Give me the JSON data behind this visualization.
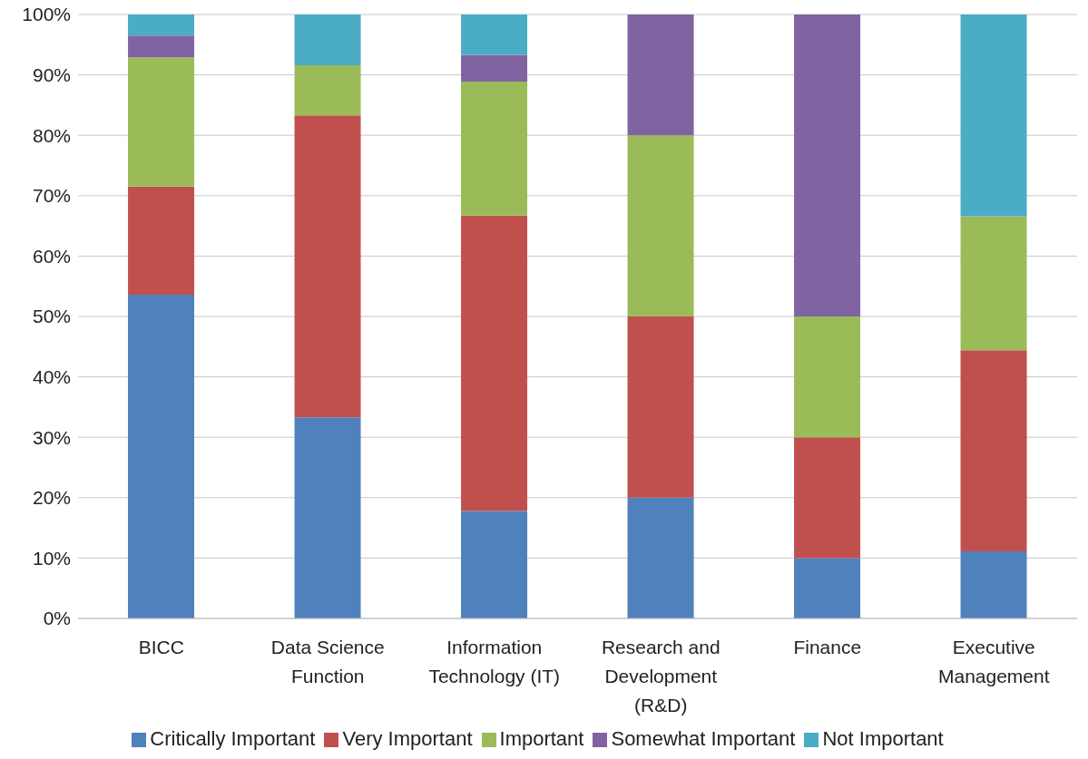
{
  "chart_data": {
    "type": "bar",
    "stacked": true,
    "categories": [
      "BICC",
      "Data Science Function",
      "Information Technology (IT)",
      "Research and Development (R&D)",
      "Finance",
      "Executive Management"
    ],
    "series": [
      {
        "name": "Critically Important",
        "color": "#4f81bd",
        "values": [
          53.6,
          33.3,
          17.8,
          20,
          10,
          11.1
        ]
      },
      {
        "name": "Very Important",
        "color": "#c0504d",
        "values": [
          17.9,
          50,
          48.9,
          30,
          20,
          33.3
        ]
      },
      {
        "name": "Important",
        "color": "#9bbb59",
        "values": [
          21.4,
          8.3,
          22.2,
          30,
          20,
          22.2
        ]
      },
      {
        "name": "Somewhat Important",
        "color": "#8064a2",
        "values": [
          3.6,
          0,
          4.4,
          20,
          50,
          0
        ]
      },
      {
        "name": "Not Important",
        "color": "#4bacc6",
        "values": [
          3.5,
          8.4,
          6.7,
          0,
          0,
          33.4
        ]
      }
    ],
    "ylim": [
      0,
      100
    ],
    "yticks": [
      {
        "value": 0,
        "label": "0%"
      },
      {
        "value": 10,
        "label": "10%"
      },
      {
        "value": 20,
        "label": "20%"
      },
      {
        "value": 30,
        "label": "30%"
      },
      {
        "value": 40,
        "label": "40%"
      },
      {
        "value": 50,
        "label": "50%"
      },
      {
        "value": 60,
        "label": "60%"
      },
      {
        "value": 70,
        "label": "70%"
      },
      {
        "value": 80,
        "label": "80%"
      },
      {
        "value": 90,
        "label": "90%"
      },
      {
        "value": 100,
        "label": "100%"
      }
    ],
    "grid": "y",
    "legend": "bottom"
  }
}
